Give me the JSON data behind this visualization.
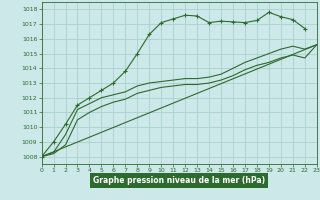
{
  "title": "Graphe pression niveau de la mer (hPa)",
  "bg_color": "#cce8e8",
  "plot_bg_color": "#cce8e8",
  "label_bg_color": "#2d6a2d",
  "grid_color": "#aad0d0",
  "line_color": "#2d6a2d",
  "xlim": [
    0,
    23
  ],
  "ylim": [
    1007.5,
    1018.5
  ],
  "yticks": [
    1008,
    1009,
    1010,
    1011,
    1012,
    1013,
    1014,
    1015,
    1016,
    1017,
    1018
  ],
  "xticks": [
    0,
    1,
    2,
    3,
    4,
    5,
    6,
    7,
    8,
    9,
    10,
    11,
    12,
    13,
    14,
    15,
    16,
    17,
    18,
    19,
    20,
    21,
    22,
    23
  ],
  "series1_x": [
    0,
    1,
    2,
    3,
    4,
    5,
    6,
    7,
    8,
    9,
    10,
    11,
    12,
    13,
    14,
    15,
    16,
    17,
    18,
    19,
    20,
    21,
    22
  ],
  "series1_y": [
    1008.0,
    1009.0,
    1010.2,
    1011.5,
    1012.0,
    1012.5,
    1013.0,
    1013.8,
    1015.0,
    1016.3,
    1017.1,
    1017.35,
    1017.6,
    1017.55,
    1017.1,
    1017.2,
    1017.15,
    1017.1,
    1017.25,
    1017.8,
    1017.5,
    1017.3,
    1016.7
  ],
  "series2_x": [
    0,
    1,
    2,
    3,
    4,
    5,
    6,
    7,
    8,
    9,
    10,
    11,
    12,
    13,
    14,
    15,
    16,
    17,
    18,
    19,
    20,
    21,
    22,
    23
  ],
  "series2_y": [
    1008.0,
    1008.3,
    1009.5,
    1011.2,
    1011.6,
    1012.0,
    1012.2,
    1012.4,
    1012.8,
    1013.0,
    1013.1,
    1013.2,
    1013.3,
    1013.3,
    1013.4,
    1013.6,
    1014.0,
    1014.4,
    1014.7,
    1015.0,
    1015.3,
    1015.5,
    1015.3,
    1015.6
  ],
  "series3_x": [
    0,
    23
  ],
  "series3_y": [
    1008.0,
    1015.6
  ],
  "series4_x": [
    0,
    1,
    2,
    3,
    4,
    5,
    6,
    7,
    8,
    9,
    10,
    11,
    12,
    13,
    14,
    15,
    16,
    17,
    18,
    19,
    20,
    21,
    22,
    23
  ],
  "series4_y": [
    1008.0,
    1008.2,
    1008.8,
    1010.5,
    1011.0,
    1011.4,
    1011.7,
    1011.9,
    1012.3,
    1012.5,
    1012.7,
    1012.8,
    1012.9,
    1012.9,
    1013.0,
    1013.2,
    1013.5,
    1013.9,
    1014.2,
    1014.4,
    1014.7,
    1014.9,
    1014.7,
    1015.6
  ]
}
